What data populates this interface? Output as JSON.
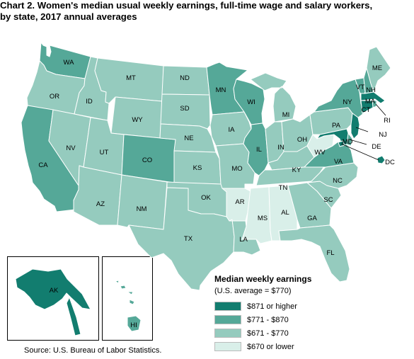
{
  "title_lines": [
    "Chart 2. Women's median usual weekly earnings, full-time wage and salary workers,",
    "by state, 2017 annual averages"
  ],
  "legend": {
    "title": "Median weekly earnings",
    "subtitle": "(U.S. average = $770)",
    "items": [
      {
        "label": "$871 or higher",
        "color": "#127d6f"
      },
      {
        "label": "$771 - $870",
        "color": "#55a898"
      },
      {
        "label": "$671 - $770",
        "color": "#95cbbe"
      },
      {
        "label": "$670 or lower",
        "color": "#d9efe9"
      }
    ]
  },
  "source": "Source: U.S. Bureau of Labor Statistics.",
  "states": [
    {
      "code": "WA",
      "tier": 1
    },
    {
      "code": "OR",
      "tier": 2
    },
    {
      "code": "CA",
      "tier": 1
    },
    {
      "code": "ID",
      "tier": 2
    },
    {
      "code": "NV",
      "tier": 2
    },
    {
      "code": "MT",
      "tier": 2
    },
    {
      "code": "WY",
      "tier": 2
    },
    {
      "code": "UT",
      "tier": 2
    },
    {
      "code": "AZ",
      "tier": 2
    },
    {
      "code": "CO",
      "tier": 1
    },
    {
      "code": "NM",
      "tier": 2
    },
    {
      "code": "ND",
      "tier": 2
    },
    {
      "code": "SD",
      "tier": 2
    },
    {
      "code": "NE",
      "tier": 2
    },
    {
      "code": "KS",
      "tier": 2
    },
    {
      "code": "OK",
      "tier": 2
    },
    {
      "code": "TX",
      "tier": 2
    },
    {
      "code": "MN",
      "tier": 1
    },
    {
      "code": "IA",
      "tier": 2
    },
    {
      "code": "MO",
      "tier": 2
    },
    {
      "code": "AR",
      "tier": 3
    },
    {
      "code": "LA",
      "tier": 2
    },
    {
      "code": "WI",
      "tier": 1
    },
    {
      "code": "IL",
      "tier": 1
    },
    {
      "code": "MI",
      "tier": 2
    },
    {
      "code": "IN",
      "tier": 2
    },
    {
      "code": "OH",
      "tier": 2
    },
    {
      "code": "KY",
      "tier": 2
    },
    {
      "code": "TN",
      "tier": 2
    },
    {
      "code": "MS",
      "tier": 3
    },
    {
      "code": "AL",
      "tier": 3
    },
    {
      "code": "GA",
      "tier": 2
    },
    {
      "code": "FL",
      "tier": 2
    },
    {
      "code": "SC",
      "tier": 2
    },
    {
      "code": "NC",
      "tier": 2
    },
    {
      "code": "VA",
      "tier": 1
    },
    {
      "code": "WV",
      "tier": 3
    },
    {
      "code": "PA",
      "tier": 2
    },
    {
      "code": "NY",
      "tier": 1
    },
    {
      "code": "VT",
      "tier": 1
    },
    {
      "code": "NH",
      "tier": 1
    },
    {
      "code": "ME",
      "tier": 2
    },
    {
      "code": "MA",
      "tier": 0
    },
    {
      "code": "RI",
      "tier": 1
    },
    {
      "code": "CT",
      "tier": 0
    },
    {
      "code": "NJ",
      "tier": 0
    },
    {
      "code": "DE",
      "tier": 1
    },
    {
      "code": "MD",
      "tier": 0
    },
    {
      "code": "DC",
      "tier": 0
    },
    {
      "code": "AK",
      "tier": 0
    },
    {
      "code": "HI",
      "tier": 1
    }
  ]
}
